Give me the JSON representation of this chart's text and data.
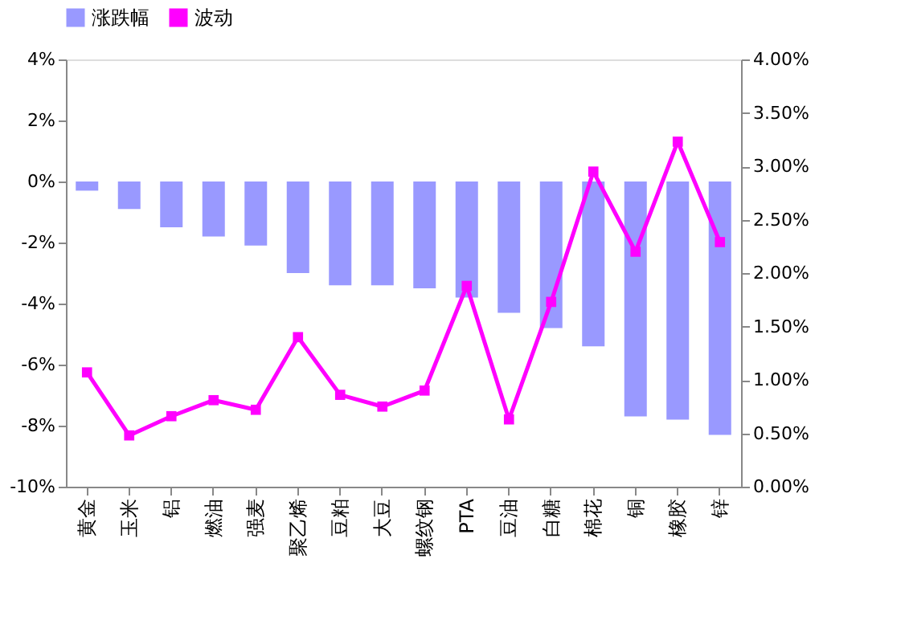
{
  "chart_data": {
    "type": "bar",
    "categories": [
      "黄金",
      "玉米",
      "铝",
      "燃油",
      "强麦",
      "聚乙烯",
      "豆粕",
      "大豆",
      "螺纹钢",
      "PTA",
      "豆油",
      "白糖",
      "棉花",
      "铜",
      "橡胶",
      "锌"
    ],
    "series": [
      {
        "name": "涨跌幅",
        "color": "#9999ff",
        "values": [
          -0.3,
          -0.9,
          -1.5,
          -1.8,
          -2.1,
          -3.0,
          -3.4,
          -3.4,
          -3.5,
          -3.8,
          -4.3,
          -4.8,
          -5.4,
          -7.7,
          -7.8,
          -8.3
        ]
      },
      {
        "name": "波动",
        "type": "line",
        "axis": "y2",
        "color": "#ff00ff",
        "marker": "square",
        "values": [
          1.07,
          0.48,
          0.66,
          0.81,
          0.72,
          1.4,
          0.86,
          0.75,
          0.9,
          1.88,
          0.63,
          1.73,
          2.95,
          2.2,
          3.23,
          2.29
        ]
      }
    ],
    "ylim": [
      -10,
      4
    ],
    "yticks": [
      {
        "value": -10,
        "label": "-10%"
      },
      {
        "value": -8,
        "label": "-8%"
      },
      {
        "value": -6,
        "label": "-6%"
      },
      {
        "value": -4,
        "label": "-4%"
      },
      {
        "value": -2,
        "label": "-2%"
      },
      {
        "value": 0,
        "label": "0%"
      },
      {
        "value": 2,
        "label": "2%"
      },
      {
        "value": 4,
        "label": "4%"
      }
    ],
    "y2lim": [
      0,
      4
    ],
    "y2ticks": [
      {
        "value": 0,
        "label": "0.00%"
      },
      {
        "value": 0.5,
        "label": "0.50%"
      },
      {
        "value": 1,
        "label": "1.00%"
      },
      {
        "value": 1.5,
        "label": "1.50%"
      },
      {
        "value": 2,
        "label": "2.00%"
      },
      {
        "value": 2.5,
        "label": "2.50%"
      },
      {
        "value": 3,
        "label": "3.00%"
      },
      {
        "value": 3.5,
        "label": "3.50%"
      },
      {
        "value": 4,
        "label": "4.00%"
      }
    ],
    "grid": false,
    "legend": "top"
  }
}
